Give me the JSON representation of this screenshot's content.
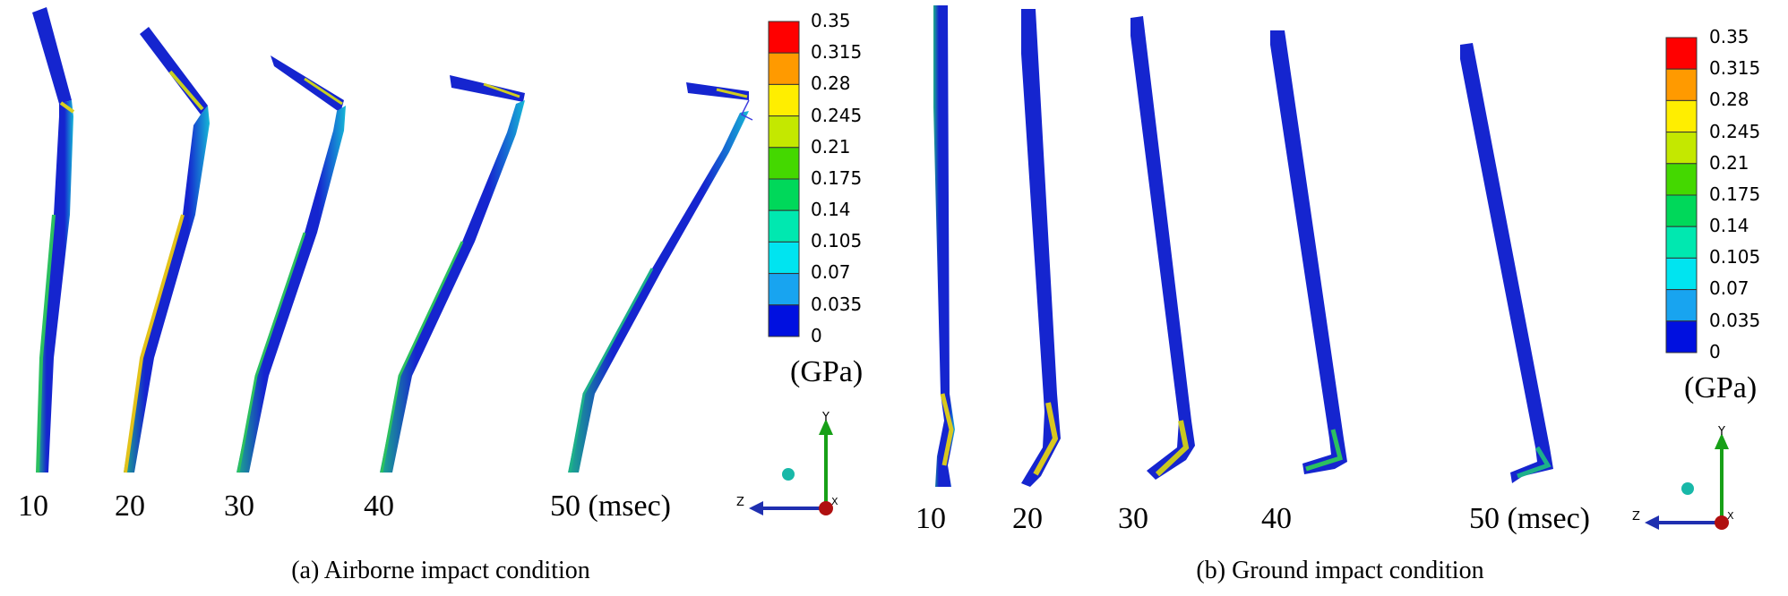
{
  "legend": {
    "ticks": [
      "0.35",
      "0.315",
      "0.28",
      "0.245",
      "0.21",
      "0.175",
      "0.14",
      "0.105",
      "0.07",
      "0.035",
      "0"
    ],
    "unit": "(GPa)",
    "colors": [
      "#ff0000",
      "#ff9a00",
      "#ffee00",
      "#c4e800",
      "#44d800",
      "#00d85a",
      "#00e8b0",
      "#00e4f0",
      "#18a4f0",
      "#0010e0"
    ]
  },
  "panels": [
    {
      "caption": "(a) Airborne impact condition",
      "time_labels": [
        "10",
        "20",
        "30",
        "40",
        "50 (msec)"
      ]
    },
    {
      "caption": "(b) Ground impact condition",
      "time_labels": [
        "10",
        "20",
        "30",
        "40",
        "50 (msec)"
      ]
    }
  ],
  "axes": {
    "y_label": "Y",
    "z_label": "Z",
    "x_label": "X"
  },
  "colors": {
    "blade_body": "#1525cf",
    "blade_edge": "#1ba88e",
    "hot_edge": "#e2c21a",
    "axis_y": "#17a017",
    "axis_z": "#1f2fb0",
    "origin": "#b01010"
  }
}
